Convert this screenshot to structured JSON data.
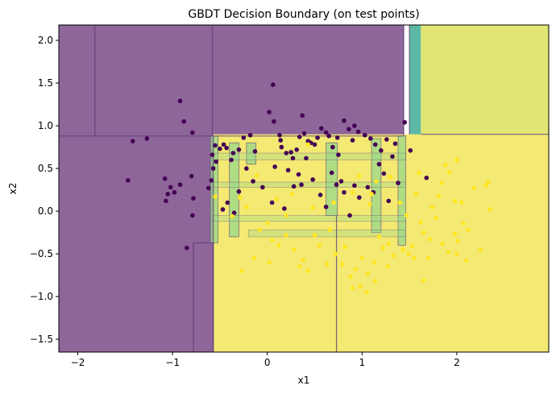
{
  "chart_data": {
    "type": "scatter",
    "title": "GBDT Decision Boundary (on test points)",
    "xlabel": "x1",
    "ylabel": "x2",
    "xlim": [
      -2.2,
      2.97
    ],
    "ylim": [
      -1.65,
      2.18
    ],
    "xticks": [
      -2,
      -1,
      0,
      1,
      2
    ],
    "yticks": [
      -1.5,
      -1.0,
      -0.5,
      0.0,
      0.5,
      1.0,
      1.5,
      2.0
    ],
    "xtick_labels": [
      "−2",
      "−1",
      "0",
      "1",
      "2"
    ],
    "ytick_labels": [
      "−1.5",
      "−1.0",
      "−0.5",
      "0.0",
      "0.5",
      "1.0",
      "1.5",
      "2.0"
    ],
    "grid": false,
    "legend": "none",
    "colors": {
      "class0_region": "#8e6699",
      "class1_region": "#f3e973",
      "class1_region_light": "#e1e573",
      "transition_teal": "#5cb9a5",
      "transition_green": "#9ad78a",
      "boundary_line": "#5b3f78",
      "class0_point": "#440154",
      "class1_point": "#fde725"
    },
    "decision_regions": [
      {
        "class": 0,
        "x": [
          -2.2,
          1.44
        ],
        "y": [
          -1.65,
          2.18
        ]
      },
      {
        "class": 1,
        "x": [
          -0.57,
          1.5
        ],
        "y": [
          -1.65,
          0.9
        ]
      },
      {
        "class": 1,
        "x": [
          1.5,
          2.97
        ],
        "y": [
          -1.65,
          0.9
        ]
      },
      {
        "class": 1,
        "x": [
          1.62,
          2.97
        ],
        "y": [
          0.9,
          2.18
        ]
      },
      {
        "class": 0.5,
        "x": [
          1.5,
          1.62
        ],
        "y": [
          0.9,
          2.18
        ]
      },
      {
        "class": 0,
        "x": [
          -0.78,
          -0.57
        ],
        "y": [
          -1.65,
          -0.37
        ]
      }
    ],
    "series": [
      {
        "class": 0,
        "points": [
          [
            -1.42,
            0.82
          ],
          [
            -1.27,
            0.85
          ],
          [
            -0.92,
            1.29
          ],
          [
            -0.88,
            1.05
          ],
          [
            -0.79,
            0.92
          ],
          [
            -1.47,
            0.36
          ],
          [
            -1.08,
            0.38
          ],
          [
            -1.02,
            0.28
          ],
          [
            -1.05,
            0.2
          ],
          [
            -0.98,
            0.22
          ],
          [
            -1.07,
            0.12
          ],
          [
            -0.92,
            0.31
          ],
          [
            -0.78,
            0.15
          ],
          [
            -0.62,
            0.27
          ],
          [
            -0.59,
            0.36
          ],
          [
            -0.57,
            0.5
          ],
          [
            -0.54,
            0.58
          ],
          [
            -0.5,
            0.73
          ],
          [
            -0.46,
            0.78
          ],
          [
            -0.43,
            0.74
          ],
          [
            -0.38,
            0.6
          ],
          [
            -0.36,
            0.68
          ],
          [
            -0.3,
            0.72
          ],
          [
            -0.58,
            0.66
          ],
          [
            -0.55,
            0.77
          ],
          [
            -0.79,
            -0.05
          ],
          [
            -0.8,
            0.41
          ],
          [
            -0.85,
            -0.43
          ],
          [
            -0.25,
            0.86
          ],
          [
            -0.18,
            0.89
          ],
          [
            -0.13,
            0.7
          ],
          [
            0.02,
            1.16
          ],
          [
            0.06,
            1.48
          ],
          [
            0.07,
            1.05
          ],
          [
            0.13,
            0.89
          ],
          [
            0.14,
            0.83
          ],
          [
            0.15,
            0.75
          ],
          [
            0.2,
            0.68
          ],
          [
            0.25,
            0.69
          ],
          [
            0.27,
            0.62
          ],
          [
            0.31,
            0.72
          ],
          [
            0.34,
            0.87
          ],
          [
            0.39,
            0.91
          ],
          [
            0.37,
            1.12
          ],
          [
            0.43,
            0.82
          ],
          [
            0.46,
            0.8
          ],
          [
            0.5,
            0.78
          ],
          [
            0.53,
            0.86
          ],
          [
            0.57,
            0.97
          ],
          [
            0.62,
            0.92
          ],
          [
            0.65,
            0.88
          ],
          [
            0.69,
            0.75
          ],
          [
            0.74,
            0.86
          ],
          [
            0.75,
            0.66
          ],
          [
            0.81,
            1.06
          ],
          [
            0.86,
            0.96
          ],
          [
            0.9,
            0.83
          ],
          [
            0.92,
            1.0
          ],
          [
            0.96,
            0.93
          ],
          [
            1.03,
            0.89
          ],
          [
            1.09,
            0.85
          ],
          [
            1.14,
            0.78
          ],
          [
            1.2,
            0.71
          ],
          [
            1.26,
            0.84
          ],
          [
            1.35,
            0.79
          ],
          [
            1.45,
            1.04
          ],
          [
            1.51,
            0.71
          ],
          [
            1.68,
            0.39
          ],
          [
            -0.15,
            0.35
          ],
          [
            -0.05,
            0.28
          ],
          [
            0.08,
            0.52
          ],
          [
            0.22,
            0.48
          ],
          [
            0.28,
            0.29
          ],
          [
            0.33,
            0.43
          ],
          [
            0.41,
            0.62
          ],
          [
            0.48,
            0.37
          ],
          [
            0.56,
            0.19
          ],
          [
            0.62,
            0.05
          ],
          [
            0.68,
            0.45
          ],
          [
            0.73,
            0.31
          ],
          [
            0.78,
            0.35
          ],
          [
            0.81,
            0.22
          ],
          [
            0.87,
            -0.05
          ],
          [
            0.92,
            0.3
          ],
          [
            0.97,
            0.16
          ],
          [
            1.06,
            0.28
          ],
          [
            1.12,
            0.22
          ],
          [
            1.18,
            0.55
          ],
          [
            1.23,
            0.44
          ],
          [
            1.28,
            0.12
          ],
          [
            1.32,
            0.64
          ],
          [
            1.38,
            0.33
          ],
          [
            -0.3,
            0.23
          ],
          [
            -0.22,
            0.5
          ],
          [
            -0.42,
            0.1
          ],
          [
            -0.47,
            0.02
          ],
          [
            -0.35,
            -0.02
          ],
          [
            0.05,
            0.1
          ],
          [
            0.18,
            0.03
          ],
          [
            0.36,
            0.31
          ]
        ]
      },
      {
        "class": 1,
        "points": [
          [
            0.43,
            0.78
          ],
          [
            -0.55,
            0.17
          ],
          [
            0.97,
            0.41
          ],
          [
            1.1,
            0.2
          ],
          [
            2.33,
            0.34
          ],
          [
            2.31,
            0.3
          ],
          [
            2.18,
            0.27
          ],
          [
            2.05,
            0.1
          ],
          [
            1.98,
            0.12
          ],
          [
            1.92,
            0.45
          ],
          [
            2.0,
            0.6
          ],
          [
            1.88,
            0.54
          ],
          [
            1.84,
            0.33
          ],
          [
            1.81,
            0.18
          ],
          [
            1.78,
            -0.08
          ],
          [
            1.74,
            0.05
          ],
          [
            1.62,
            -0.13
          ],
          [
            1.65,
            -0.25
          ],
          [
            1.72,
            -0.33
          ],
          [
            1.85,
            -0.38
          ],
          [
            1.91,
            -0.48
          ],
          [
            1.98,
            -0.27
          ],
          [
            2.07,
            -0.14
          ],
          [
            2.12,
            -0.22
          ],
          [
            2.01,
            -0.35
          ],
          [
            2.25,
            -0.45
          ],
          [
            2.1,
            -0.58
          ],
          [
            2.0,
            -0.5
          ],
          [
            1.7,
            -0.55
          ],
          [
            1.65,
            -0.81
          ],
          [
            1.53,
            -0.41
          ],
          [
            1.49,
            -0.5
          ],
          [
            1.43,
            -0.45
          ],
          [
            1.33,
            -0.52
          ],
          [
            1.28,
            -0.38
          ],
          [
            1.18,
            -0.3
          ],
          [
            1.22,
            -0.43
          ],
          [
            1.27,
            -0.65
          ],
          [
            1.14,
            -0.82
          ],
          [
            1.06,
            -0.73
          ],
          [
            0.98,
            -0.88
          ],
          [
            0.93,
            -0.68
          ],
          [
            0.88,
            -0.77
          ],
          [
            0.79,
            -0.62
          ],
          [
            0.82,
            -0.42
          ],
          [
            0.72,
            -0.5
          ],
          [
            0.63,
            -0.62
          ],
          [
            0.55,
            -0.4
          ],
          [
            0.5,
            -0.28
          ],
          [
            0.43,
            -0.7
          ],
          [
            0.38,
            -0.57
          ],
          [
            0.34,
            -0.65
          ],
          [
            0.28,
            -0.45
          ],
          [
            0.2,
            -0.28
          ],
          [
            0.12,
            -0.4
          ],
          [
            0.05,
            -0.34
          ],
          [
            0.0,
            -0.14
          ],
          [
            -0.08,
            -0.22
          ],
          [
            -0.14,
            -0.55
          ],
          [
            -0.27,
            -0.7
          ],
          [
            -0.37,
            -0.06
          ],
          [
            -0.29,
            0.16
          ],
          [
            -0.22,
            0.05
          ],
          [
            0.1,
            0.14
          ],
          [
            0.26,
            0.2
          ],
          [
            0.48,
            0.04
          ],
          [
            0.7,
            0.1
          ],
          [
            0.9,
            0.22
          ],
          [
            1.08,
            0.08
          ],
          [
            1.15,
            0.35
          ],
          [
            1.3,
            0.4
          ],
          [
            1.4,
            0.1
          ],
          [
            1.47,
            -0.05
          ],
          [
            1.57,
            0.2
          ],
          [
            1.6,
            0.45
          ],
          [
            0.2,
            -0.05
          ],
          [
            -0.11,
            0.42
          ],
          [
            0.02,
            -0.6
          ],
          [
            0.66,
            -0.22
          ],
          [
            1.0,
            -0.55
          ],
          [
            1.05,
            -0.95
          ],
          [
            1.13,
            -0.6
          ],
          [
            0.9,
            -0.9
          ],
          [
            1.55,
            -0.55
          ],
          [
            2.35,
            0.02
          ]
        ]
      }
    ]
  }
}
